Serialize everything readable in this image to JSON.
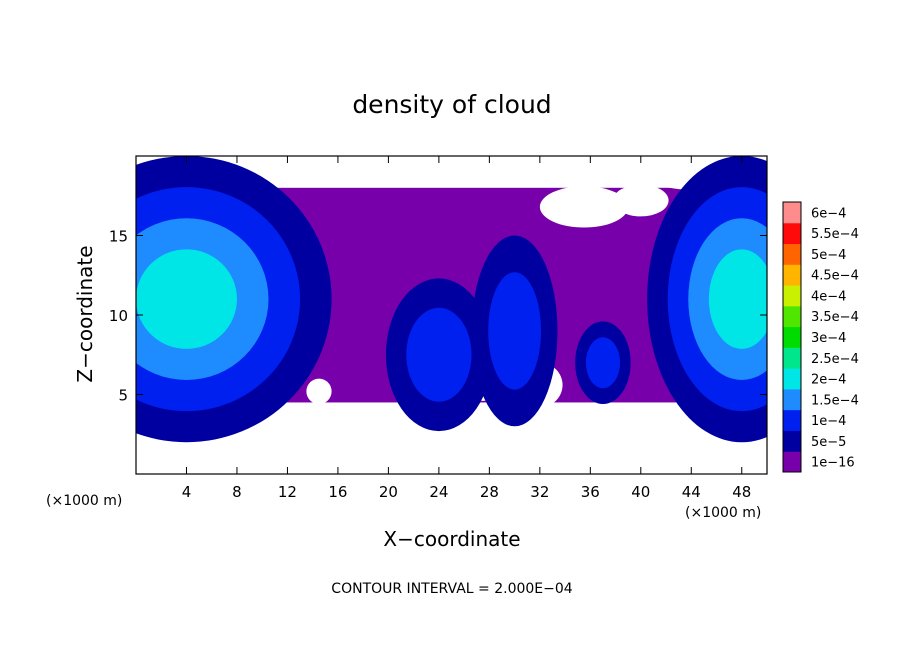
{
  "chart_data": {
    "type": "heatmap",
    "title": "density of cloud",
    "xlabel": "X−coordinate",
    "ylabel": "Z−coordinate",
    "x_unit": "(×1000 m)",
    "z_unit": "(×1000 m)",
    "xlim": [
      0,
      50
    ],
    "ylim": [
      0,
      20
    ],
    "x_ticks": [
      4,
      8,
      12,
      16,
      20,
      24,
      28,
      32,
      36,
      40,
      44,
      48
    ],
    "y_ticks": [
      5,
      10,
      15
    ],
    "footer": "CONTOUR INTERVAL = 2.000E−04",
    "colorbar": {
      "labels": [
        "1e−16",
        "5e−5",
        "1e−4",
        "1.5e−4",
        "2e−4",
        "2.5e−4",
        "3e−4",
        "3.5e−4",
        "4e−4",
        "4.5e−4",
        "5e−4",
        "5.5e−4",
        "6e−4"
      ],
      "colors": [
        "#7800aa",
        "#0000a0",
        "#0020f0",
        "#1e8cff",
        "#00e6e6",
        "#00e68c",
        "#00dc00",
        "#50e600",
        "#c8f000",
        "#ffb400",
        "#ff6400",
        "#ff0a0a",
        "#ff8c8c"
      ]
    },
    "cloud_base_km": 4.5,
    "cloud_top_km": 18,
    "cores": [
      {
        "x": 4,
        "z": 11,
        "value": 0.00022
      },
      {
        "x": 48,
        "z": 11,
        "value": 0.0002
      },
      {
        "x": 24,
        "z": 7.5,
        "value": 0.00015
      },
      {
        "x": 30,
        "z": 9,
        "value": 0.00012
      },
      {
        "x": 37,
        "z": 7,
        "value": 0.00012
      }
    ]
  }
}
